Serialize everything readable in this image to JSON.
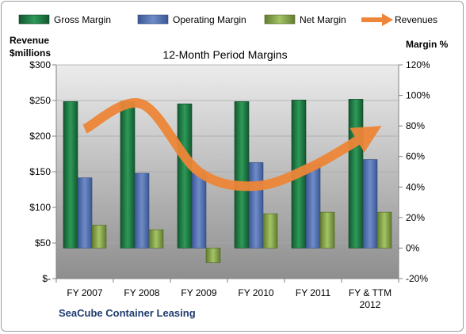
{
  "chart_data": {
    "type": "bar",
    "title": "12-Month Period Margins",
    "company": "SeaCube Container Leasing",
    "left_axis_label": [
      "Revenue",
      "$millions"
    ],
    "right_axis_label": "Margin %",
    "left_ticks": [
      "$-",
      "$50",
      "$100",
      "$150",
      "$200",
      "$250",
      "$300"
    ],
    "left_ylim": [
      0,
      300
    ],
    "right_ticks": [
      "-20%",
      "0%",
      "20%",
      "40%",
      "60%",
      "80%",
      "100%",
      "120%"
    ],
    "right_ylim": [
      -20,
      120
    ],
    "categories": [
      [
        "FY 2007"
      ],
      [
        "FY 2008"
      ],
      [
        "FY 2009"
      ],
      [
        "FY 2010"
      ],
      [
        "FY 2011"
      ],
      [
        "FY & TTM",
        "2012"
      ]
    ],
    "grid": true,
    "legend_position": "top",
    "series": [
      {
        "name": "Gross Margin",
        "type": "bar",
        "axis": "right",
        "color": "#1e7a45",
        "values": [
          96,
          96,
          94.5,
          96,
          97,
          97.5
        ]
      },
      {
        "name": "Operating Margin",
        "type": "bar",
        "axis": "right",
        "color": "#4f6fb4",
        "values": [
          46,
          49,
          49,
          56,
          55,
          58
        ]
      },
      {
        "name": "Net Margin",
        "type": "bar",
        "axis": "right",
        "color": "#88a94a",
        "values": [
          15,
          12,
          -9.5,
          22.5,
          23.5,
          23.5
        ]
      },
      {
        "name": "Revenues",
        "type": "line",
        "axis": "left",
        "color": "#ed8638",
        "values": [
          210,
          245,
          150,
          130,
          158,
          205
        ]
      }
    ]
  }
}
